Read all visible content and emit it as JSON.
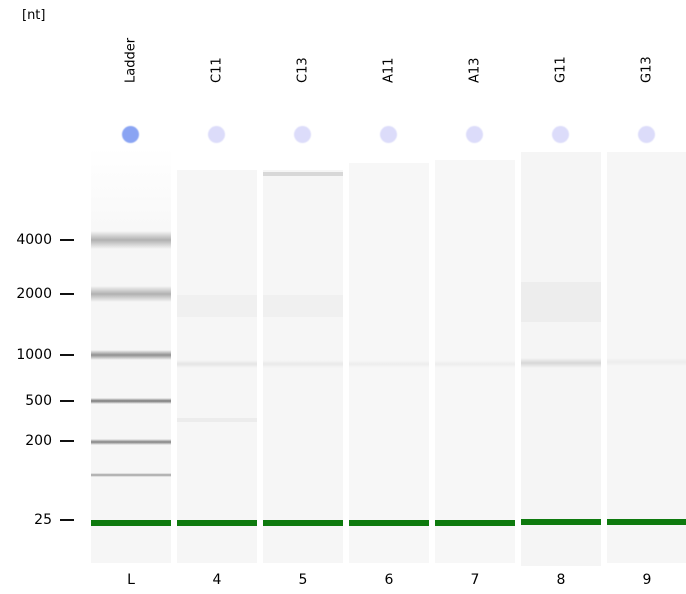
{
  "unit_label": "[nt]",
  "ylabels": [
    "4000",
    "2000",
    "1000",
    "500",
    "200",
    "25"
  ],
  "lanes": [
    {
      "name": "Ladder",
      "number": "L"
    },
    {
      "name": "C11",
      "number": "4"
    },
    {
      "name": "C13",
      "number": "5"
    },
    {
      "name": "A11",
      "number": "6"
    },
    {
      "name": "A13",
      "number": "7"
    },
    {
      "name": "G11",
      "number": "8"
    },
    {
      "name": "G13",
      "number": "9"
    }
  ],
  "colors": {
    "marker_ladder": "#8aa4f3",
    "marker_sample": "#dcdcfa",
    "lower_marker_band": "#0e7a0e",
    "gel_background": "#f7f7f7"
  }
}
